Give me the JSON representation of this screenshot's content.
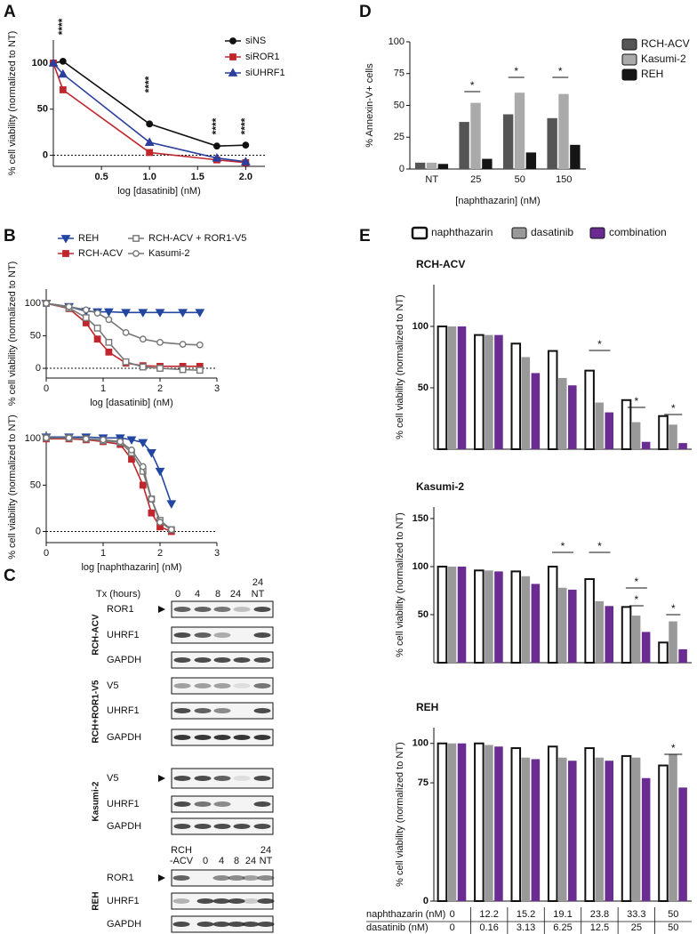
{
  "chart_data": [
    {
      "type": "line",
      "panel": "A",
      "xlabel": "log [dasatinib] (nM)",
      "ylabel": "% cell viability (normalized to NT)",
      "x": [
        0,
        0.1,
        1.0,
        1.7,
        2.0
      ],
      "xlim": [
        0,
        2.2
      ],
      "xticks": [
        0.5,
        {
          "value": 1,
          "label": "1.0"
        },
        1.5,
        {
          "value": 2,
          "label": "2.0"
        }
      ],
      "ylim": [
        -12,
        125
      ],
      "yticks": [
        0,
        50,
        100
      ],
      "zero_line": true,
      "series": [
        {
          "name": "siNS",
          "color": "#111111",
          "marker": "circle",
          "filled": true,
          "values": [
            100,
            102,
            34,
            10,
            11
          ]
        },
        {
          "name": "siROR1",
          "color": "#c0272d",
          "marker": "square",
          "filled": true,
          "values": [
            100,
            71,
            3,
            -5,
            -8
          ]
        },
        {
          "name": "siUHRF1",
          "color": "#2b3f9c",
          "marker": "triangle",
          "filled": true,
          "values": [
            100,
            88,
            14,
            -3,
            -7
          ]
        }
      ],
      "annotations": [
        {
          "x": 0.1,
          "label": "****"
        },
        {
          "x": 1.0,
          "label": "****"
        },
        {
          "x": 1.7,
          "label": "****"
        },
        {
          "x": 2.0,
          "label": "****"
        }
      ]
    },
    {
      "type": "line",
      "panel": "B",
      "xlabel": "log [dasatinib] (nM)",
      "ylabel": "% cell viability (normalized to NT)",
      "x": [
        0,
        0.4,
        0.7,
        0.9,
        1.1,
        1.4,
        1.7,
        2.0,
        2.4,
        2.7
      ],
      "xlim": [
        0,
        3
      ],
      "xticks": [
        0,
        1,
        2,
        3
      ],
      "ylim": [
        -15,
        122
      ],
      "yticks": [
        0,
        50,
        100
      ],
      "zero_line": true,
      "series": [
        {
          "name": "REH",
          "color": "#2346a0",
          "marker": "triangle-down",
          "filled": true,
          "values": [
            100,
            95,
            88,
            87,
            87,
            86,
            86,
            86,
            86,
            86
          ]
        },
        {
          "name": "RCH-ACV",
          "color": "#c0272d",
          "marker": "square",
          "filled": true,
          "values": [
            100,
            92,
            70,
            45,
            25,
            8,
            4,
            3,
            3,
            3
          ]
        },
        {
          "name": "RCH-ACV + ROR1-V5",
          "color": "#777777",
          "marker": "square",
          "filled": false,
          "values": [
            100,
            93,
            78,
            62,
            40,
            10,
            2,
            0,
            -2,
            -3
          ]
        },
        {
          "name": "Kasumi-2",
          "color": "#777777",
          "marker": "circle",
          "filled": false,
          "values": [
            100,
            95,
            90,
            85,
            75,
            55,
            45,
            40,
            37,
            36
          ]
        }
      ]
    },
    {
      "type": "line",
      "xlabel": "log [naphthazarin] (nM)",
      "ylabel": "% cell viability (normalized to NT)",
      "x": [
        0,
        0.4,
        0.7,
        1.0,
        1.3,
        1.5,
        1.7,
        1.85,
        2.0,
        2.2
      ],
      "xlim": [
        0,
        3
      ],
      "xticks": [
        0,
        1,
        2,
        3
      ],
      "ylim": [
        -12,
        108
      ],
      "yticks": [
        0,
        50,
        100
      ],
      "zero_line": true,
      "series": [
        {
          "color": "#2346a0",
          "marker": "triangle-down",
          "filled": true,
          "values": [
            102,
            102,
            102,
            101,
            101,
            99,
            96,
            85,
            65,
            30
          ]
        },
        {
          "color": "#c0272d",
          "marker": "square",
          "filled": true,
          "values": [
            100,
            100,
            99,
            97,
            94,
            78,
            50,
            20,
            5,
            0
          ]
        },
        {
          "color": "#777777",
          "marker": "square",
          "filled": false,
          "values": [
            101,
            101,
            100,
            98,
            96,
            85,
            65,
            35,
            12,
            2
          ]
        },
        {
          "color": "#777777",
          "marker": "circle",
          "filled": false,
          "values": [
            101,
            101,
            100,
            99,
            97,
            88,
            70,
            35,
            10,
            2
          ]
        }
      ]
    },
    {
      "type": "bar",
      "panel": "D",
      "xlabel": "[naphthazarin] (nM)",
      "ylabel": "% Annexin-V+ cells",
      "categories": [
        "NT",
        "25",
        "50",
        "150"
      ],
      "ylim": [
        0,
        100
      ],
      "yticks": [
        0,
        25,
        50,
        75,
        100
      ],
      "series": [
        {
          "name": "RCH-ACV",
          "color": "#555555",
          "values": [
            5,
            37,
            43,
            40
          ]
        },
        {
          "name": "Kasumi-2",
          "color": "#aaaaaa",
          "values": [
            5,
            52,
            60,
            59
          ]
        },
        {
          "name": "REH",
          "color": "#151515",
          "values": [
            4,
            8,
            13,
            19
          ]
        }
      ],
      "annotations": [
        "*",
        "*",
        "*"
      ]
    },
    {
      "type": "bar",
      "panel": "E",
      "title": "RCH-ACV",
      "ylabel": "% cell viability (normalized to NT)",
      "ylim": [
        0,
        134
      ],
      "yticks": [
        50,
        100
      ],
      "series": [
        {
          "name": "naphthazarin",
          "color": "#ffffff",
          "edgecolor": "#111111",
          "values": [
            100,
            93,
            86,
            80,
            64,
            40,
            27
          ]
        },
        {
          "name": "dasatinib",
          "color": "#999999",
          "values": [
            100,
            93,
            75,
            58,
            38,
            22,
            20
          ]
        },
        {
          "name": "combination",
          "color": "#6a2c91",
          "values": [
            100,
            93,
            62,
            52,
            30,
            6,
            5
          ]
        }
      ],
      "annotations": [
        "*",
        "*",
        "*"
      ]
    },
    {
      "type": "bar",
      "title": "Kasumi-2",
      "ylabel": "% cell viability (normalized to NT)",
      "ylim": [
        0,
        162
      ],
      "yticks": [
        50,
        100,
        150
      ],
      "series": [
        {
          "color": "#ffffff",
          "edgecolor": "#111111",
          "values": [
            100,
            96,
            95,
            100,
            87,
            58,
            21
          ]
        },
        {
          "color": "#999999",
          "values": [
            100,
            96,
            90,
            78,
            64,
            49,
            43
          ]
        },
        {
          "color": "#6a2c91",
          "values": [
            100,
            95,
            82,
            76,
            59,
            32,
            14
          ]
        }
      ],
      "annotations": [
        "*",
        "*",
        "*",
        "*",
        "*"
      ]
    },
    {
      "type": "bar",
      "title": "REH",
      "ylabel": "% cell viability (normalized to NT)",
      "ylim": [
        0,
        110
      ],
      "yticks": [
        0,
        75,
        100
      ],
      "series": [
        {
          "color": "#ffffff",
          "edgecolor": "#111111",
          "values": [
            100,
            100,
            97,
            98,
            97,
            92,
            86
          ]
        },
        {
          "color": "#999999",
          "values": [
            100,
            99,
            91,
            91,
            91,
            91,
            93
          ]
        },
        {
          "color": "#6a2c91",
          "values": [
            100,
            98,
            90,
            89,
            89,
            78,
            72
          ]
        }
      ],
      "annotations": [
        "*"
      ]
    }
  ],
  "dose_table": {
    "rows": [
      {
        "label": "naphthazarin (nM)",
        "values": [
          0,
          12.2,
          15.2,
          19.1,
          23.8,
          33.3,
          50
        ]
      },
      {
        "label": "dasatinib (nM)",
        "values": [
          0,
          0.16,
          3.13,
          6.25,
          12.5,
          25,
          50
        ]
      }
    ]
  },
  "blots": {
    "panel": "C",
    "header": {
      "title": "Tx (hours)",
      "lanes": [
        "0",
        "4",
        "8",
        "24"
      ],
      "nt_lane": [
        "24",
        "NT"
      ]
    },
    "groups": [
      {
        "name": "RCH-ACV",
        "rows": [
          "ROR1",
          "UHRF1",
          "GAPDH"
        ]
      },
      {
        "name": "RCH+ROR1-V5",
        "rows": [
          "V5",
          "UHRF1",
          "GAPDH"
        ]
      },
      {
        "name": "Kasumi-2",
        "rows": [
          "V5",
          "UHRF1",
          "GAPDH"
        ]
      },
      {
        "name": "REH",
        "rows": [
          "ROR1",
          "UHRF1",
          "GAPDH"
        ]
      }
    ],
    "reh_header": {
      "control": [
        "RCH",
        "-ACV"
      ],
      "lanes": [
        "0",
        "4",
        "8",
        "24"
      ],
      "nt_lane": [
        "24",
        "NT"
      ]
    }
  }
}
